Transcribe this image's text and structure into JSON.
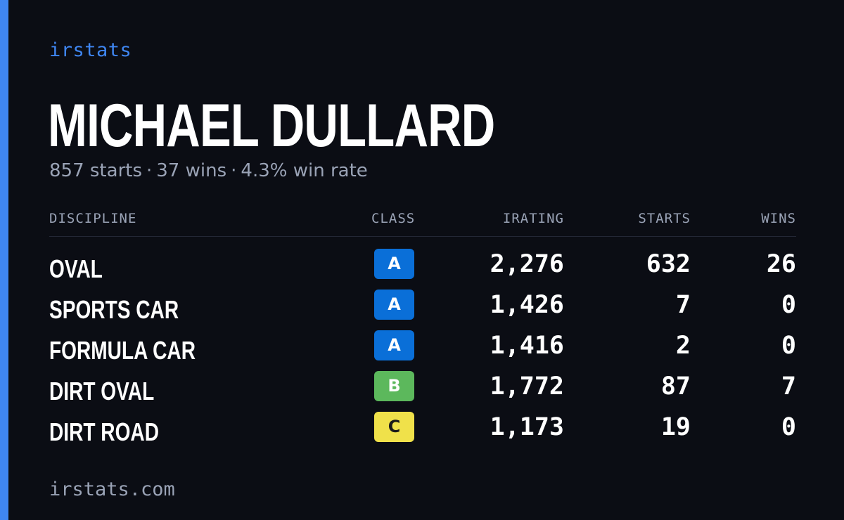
{
  "brand": "irstats",
  "player": {
    "name": "MICHAEL DULLARD",
    "starts": "857 starts",
    "wins": "37 wins",
    "win_rate": "4.3% win rate",
    "separator": "·"
  },
  "table": {
    "headers": {
      "discipline": "DISCIPLINE",
      "class": "CLASS",
      "irating": "IRATING",
      "starts": "STARTS",
      "wins": "WINS"
    },
    "rows": [
      {
        "discipline": "OVAL",
        "class": "A",
        "irating": "2,276",
        "starts": "632",
        "wins": "26"
      },
      {
        "discipline": "SPORTS CAR",
        "class": "A",
        "irating": "1,426",
        "starts": "7",
        "wins": "0"
      },
      {
        "discipline": "FORMULA CAR",
        "class": "A",
        "irating": "1,416",
        "starts": "2",
        "wins": "0"
      },
      {
        "discipline": "DIRT OVAL",
        "class": "B",
        "irating": "1,772",
        "starts": "87",
        "wins": "7"
      },
      {
        "discipline": "DIRT ROAD",
        "class": "C",
        "irating": "1,173",
        "starts": "19",
        "wins": "0"
      }
    ]
  },
  "class_colors": {
    "A": {
      "bg": "#0a6fd8",
      "fg": "#ffffff"
    },
    "B": {
      "bg": "#5cb85c",
      "fg": "#ffffff"
    },
    "C": {
      "bg": "#f0e14a",
      "fg": "#1a1a1a"
    }
  },
  "colors": {
    "background": "#0b0d14",
    "accent": "#3f86f2",
    "muted_text": "#9aa3b6",
    "primary_text": "#ffffff"
  },
  "footer": {
    "url": "irstats.com"
  }
}
